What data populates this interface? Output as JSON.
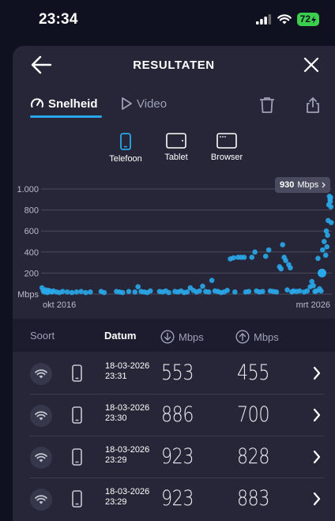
{
  "status_bar": {
    "time": "23:34",
    "battery": "72"
  },
  "header": {
    "title": "RESULTATEN"
  },
  "tabs": [
    {
      "label": "Snelheid",
      "icon": "gauge-icon",
      "active": true
    },
    {
      "label": "Video",
      "icon": "play-icon",
      "active": false
    }
  ],
  "devices": [
    {
      "label": "Telefoon",
      "icon": "phone-icon",
      "active": true
    },
    {
      "label": "Tablet",
      "icon": "tablet-icon",
      "active": false
    },
    {
      "label": "Browser",
      "icon": "browser-icon",
      "active": false
    }
  ],
  "chart_data": {
    "type": "scatter",
    "y_ticks": [
      "1.000",
      "800",
      "600",
      "400",
      "200",
      "Mbps"
    ],
    "ylim": [
      0,
      1000
    ],
    "xlabels": [
      "okt 2016",
      "mrt 2026"
    ],
    "xlim": [
      2016.75,
      2026.2
    ],
    "grid": true,
    "color": "#29a9ea",
    "highlight": {
      "value": "930",
      "unit": "Mbps"
    },
    "points": [
      [
        2016.78,
        60
      ],
      [
        2016.82,
        30
      ],
      [
        2016.86,
        20
      ],
      [
        2016.9,
        40
      ],
      [
        2016.95,
        15
      ],
      [
        2017.0,
        35
      ],
      [
        2017.05,
        25
      ],
      [
        2017.1,
        20
      ],
      [
        2017.15,
        30
      ],
      [
        2017.25,
        20
      ],
      [
        2017.35,
        15
      ],
      [
        2017.45,
        25
      ],
      [
        2017.6,
        20
      ],
      [
        2017.75,
        15
      ],
      [
        2017.9,
        20
      ],
      [
        2018.05,
        25
      ],
      [
        2018.2,
        15
      ],
      [
        2018.35,
        20
      ],
      [
        2018.7,
        25
      ],
      [
        2018.8,
        15
      ],
      [
        2019.2,
        25
      ],
      [
        2019.3,
        20
      ],
      [
        2019.4,
        15
      ],
      [
        2019.6,
        25
      ],
      [
        2019.8,
        20
      ],
      [
        2019.9,
        70
      ],
      [
        2020.0,
        25
      ],
      [
        2020.1,
        20
      ],
      [
        2020.2,
        15
      ],
      [
        2020.3,
        30
      ],
      [
        2020.6,
        25
      ],
      [
        2020.7,
        20
      ],
      [
        2020.8,
        30
      ],
      [
        2020.9,
        15
      ],
      [
        2021.1,
        25
      ],
      [
        2021.2,
        20
      ],
      [
        2021.3,
        30
      ],
      [
        2021.4,
        15
      ],
      [
        2021.5,
        20
      ],
      [
        2021.6,
        60
      ],
      [
        2021.7,
        35
      ],
      [
        2021.8,
        20
      ],
      [
        2021.9,
        30
      ],
      [
        2022.0,
        75
      ],
      [
        2022.1,
        25
      ],
      [
        2022.2,
        20
      ],
      [
        2022.3,
        130
      ],
      [
        2022.4,
        30
      ],
      [
        2022.5,
        25
      ],
      [
        2022.6,
        15
      ],
      [
        2022.7,
        20
      ],
      [
        2022.8,
        35
      ],
      [
        2022.9,
        335
      ],
      [
        2023.0,
        345
      ],
      [
        2023.05,
        20
      ],
      [
        2023.15,
        350
      ],
      [
        2023.25,
        350
      ],
      [
        2023.35,
        350
      ],
      [
        2023.4,
        20
      ],
      [
        2023.5,
        25
      ],
      [
        2023.6,
        350
      ],
      [
        2023.7,
        400
      ],
      [
        2023.75,
        30
      ],
      [
        2023.85,
        20
      ],
      [
        2023.95,
        25
      ],
      [
        2024.05,
        360
      ],
      [
        2024.15,
        420
      ],
      [
        2024.2,
        30
      ],
      [
        2024.3,
        25
      ],
      [
        2024.4,
        20
      ],
      [
        2024.5,
        260
      ],
      [
        2024.55,
        240
      ],
      [
        2024.6,
        470
      ],
      [
        2024.65,
        350
      ],
      [
        2024.7,
        320
      ],
      [
        2024.75,
        40
      ],
      [
        2024.8,
        280
      ],
      [
        2024.85,
        250
      ],
      [
        2024.9,
        20
      ],
      [
        2024.95,
        30
      ],
      [
        2025.05,
        25
      ],
      [
        2025.15,
        30
      ],
      [
        2025.3,
        20
      ],
      [
        2025.4,
        30
      ],
      [
        2025.5,
        70
      ],
      [
        2025.55,
        120
      ],
      [
        2025.6,
        80
      ],
      [
        2025.65,
        25
      ],
      [
        2025.7,
        30
      ],
      [
        2025.75,
        340
      ],
      [
        2025.8,
        50
      ],
      [
        2025.85,
        30
      ],
      [
        2025.9,
        420
      ],
      [
        2025.95,
        500
      ],
      [
        2026.0,
        370
      ],
      [
        2026.02,
        600
      ],
      [
        2026.04,
        450
      ],
      [
        2026.06,
        560
      ],
      [
        2026.08,
        700
      ],
      [
        2026.1,
        850
      ],
      [
        2026.12,
        930
      ],
      [
        2026.14,
        900
      ],
      [
        2026.15,
        880
      ],
      [
        2026.16,
        920
      ],
      [
        2026.17,
        830
      ],
      [
        2026.18,
        680
      ]
    ]
  },
  "table": {
    "columns": {
      "sort": "Soort",
      "date": "Datum",
      "down": "Mbps",
      "up": "Mbps"
    },
    "rows": [
      {
        "date": "18-03-2026",
        "time": "23:31",
        "down": "553",
        "up": "455"
      },
      {
        "date": "18-03-2026",
        "time": "23:30",
        "down": "886",
        "up": "700"
      },
      {
        "date": "18-03-2026",
        "time": "23:29",
        "down": "923",
        "up": "828"
      },
      {
        "date": "18-03-2026",
        "time": "23:29",
        "down": "923",
        "up": "883"
      }
    ]
  }
}
